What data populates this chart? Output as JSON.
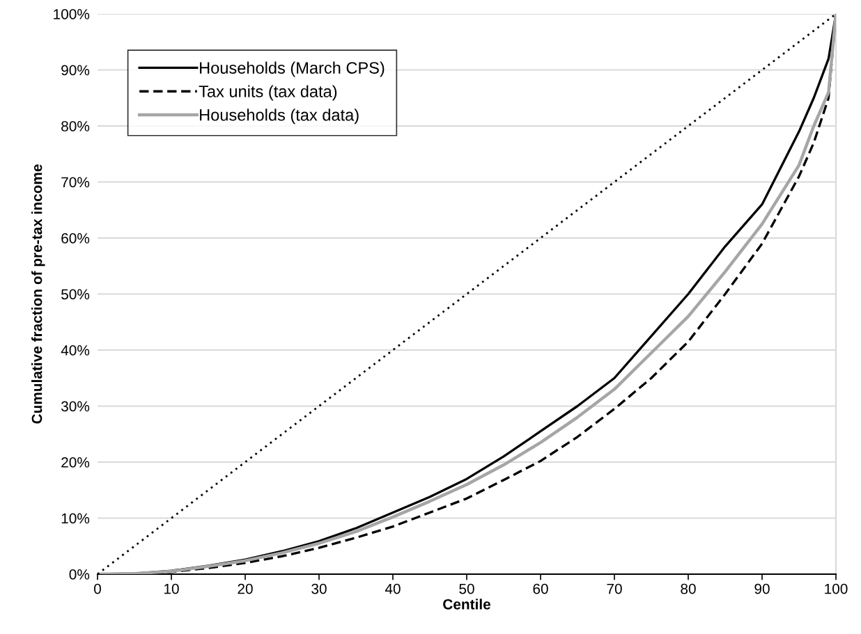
{
  "chart_data": {
    "type": "line",
    "xlabel": "Centile",
    "ylabel": "Cumulative fraction of pre-tax income",
    "xlim": [
      0,
      100
    ],
    "xticks": [
      0,
      10,
      20,
      30,
      40,
      50,
      60,
      70,
      80,
      90,
      100
    ],
    "ylim": [
      0,
      100
    ],
    "yticks": [
      {
        "value": 0,
        "label": "0%"
      },
      {
        "value": 10,
        "label": "10%"
      },
      {
        "value": 20,
        "label": "20%"
      },
      {
        "value": 30,
        "label": "30%"
      },
      {
        "value": 40,
        "label": "40%"
      },
      {
        "value": 50,
        "label": "50%"
      },
      {
        "value": 60,
        "label": "60%"
      },
      {
        "value": 70,
        "label": "70%"
      },
      {
        "value": 80,
        "label": "80%"
      },
      {
        "value": 90,
        "label": "90%"
      },
      {
        "value": 100,
        "label": "100%"
      }
    ],
    "grid": "y",
    "legend": "top left",
    "marker": "none",
    "x": [
      0,
      5,
      10,
      15,
      20,
      25,
      30,
      35,
      40,
      45,
      50,
      55,
      60,
      65,
      70,
      75,
      80,
      85,
      90,
      95,
      97,
      98,
      99,
      100
    ],
    "series": [
      {
        "name": "Households (March CPS)",
        "color": "#000000",
        "line_style": "solid",
        "values": [
          0,
          0.1,
          0.6,
          1.5,
          2.6,
          4.1,
          5.9,
          8.2,
          11,
          13.8,
          17,
          21,
          25.5,
          30,
          35,
          42.5,
          50,
          58.5,
          66,
          79,
          85,
          88.5,
          92,
          100
        ]
      },
      {
        "name": "Tax units (tax data)",
        "color": "#000000",
        "line_style": "dashed",
        "values": [
          0,
          0.05,
          0.4,
          1.1,
          2,
          3.2,
          4.7,
          6.5,
          8.5,
          11,
          13.5,
          16.8,
          20.2,
          24.5,
          29.5,
          35,
          41.5,
          50,
          59,
          71,
          77,
          81,
          85,
          100
        ]
      },
      {
        "name": "Households (tax data)",
        "color": "#a6a6a6",
        "line_style": "solid",
        "values": [
          0,
          0.1,
          0.5,
          1.4,
          2.4,
          3.8,
          5.5,
          7.6,
          10.2,
          13,
          16,
          19.5,
          23.5,
          28,
          33,
          39.5,
          46,
          54,
          62.5,
          73,
          80,
          83,
          86,
          100
        ]
      },
      {
        "color": "#000000",
        "line_style": "dotted",
        "x": [
          0,
          100
        ],
        "values": [
          0,
          100
        ]
      }
    ]
  }
}
